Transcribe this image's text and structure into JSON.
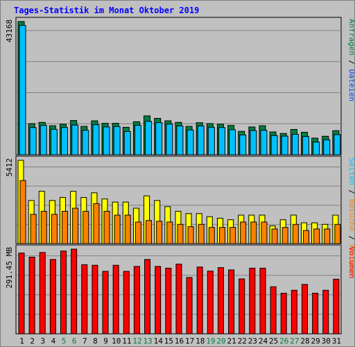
{
  "title": "Tages-Statistik im Monat Oktober 2019",
  "colors": {
    "background": "#c0c0c0",
    "panel": "#c0c0c0",
    "hits": "#008040",
    "files": "#00c0ff",
    "pages": "#00c0ff",
    "visits": "#ff8000",
    "sites": "#ffff00",
    "kbytes": "#ff0000"
  },
  "legend_right": {
    "top": [
      {
        "text": "Anfragen",
        "color": "#008040"
      },
      {
        "text": " / ",
        "color": "#000000"
      },
      {
        "text": "Dateien",
        "color": "#0040ff"
      }
    ],
    "middle": [
      {
        "text": "Seiten",
        "color": "#00c0ff"
      },
      {
        "text": " / ",
        "color": "#000000"
      },
      {
        "text": "Besuche",
        "color": "#ff8000"
      },
      {
        "text": " / ",
        "color": "#000000"
      },
      {
        "text": "Rechner",
        "color": "#ff8000"
      }
    ],
    "bottom": [
      {
        "text": "Volumen",
        "color": "#ff0000"
      }
    ]
  },
  "chart_data": [
    {
      "type": "bar",
      "panel": "requests-files",
      "ymax_label": "43168",
      "ylim": [
        0,
        43168
      ],
      "categories": [
        "1",
        "2",
        "3",
        "4",
        "5",
        "6",
        "7",
        "8",
        "9",
        "10",
        "11",
        "12",
        "13",
        "14",
        "15",
        "16",
        "17",
        "18",
        "19",
        "20",
        "21",
        "22",
        "23",
        "24",
        "25",
        "26",
        "27",
        "28",
        "29",
        "30",
        "31"
      ],
      "weekend_days": [
        "5",
        "6",
        "12",
        "13",
        "19",
        "20",
        "26",
        "27"
      ],
      "series": [
        {
          "name": "Anfragen",
          "color": "#008040",
          "values": [
            43168,
            10080,
            10500,
            9400,
            9900,
            11100,
            9200,
            11000,
            10200,
            10200,
            8900,
            10700,
            12600,
            11800,
            11000,
            10500,
            9200,
            10400,
            10100,
            9900,
            9500,
            7600,
            9000,
            9400,
            7400,
            6900,
            8200,
            7300,
            5400,
            6000,
            7800
          ]
        },
        {
          "name": "Dateien",
          "color": "#00c0ff",
          "values": [
            42600,
            9500,
            10200,
            8900,
            9500,
            10300,
            8600,
            10400,
            9700,
            9800,
            8200,
            10200,
            11500,
            11100,
            10600,
            10000,
            8700,
            10000,
            9600,
            9500,
            8800,
            7100,
            8500,
            8600,
            6900,
            6700,
            7300,
            6600,
            4800,
            5500,
            7200
          ]
        }
      ]
    },
    {
      "type": "bar",
      "panel": "pages-visits-sites",
      "ymax_label": "5412",
      "ylim": [
        0,
        5412
      ],
      "categories": [
        "1",
        "2",
        "3",
        "4",
        "5",
        "6",
        "7",
        "8",
        "9",
        "10",
        "11",
        "12",
        "13",
        "14",
        "15",
        "16",
        "17",
        "18",
        "19",
        "20",
        "21",
        "22",
        "23",
        "24",
        "25",
        "26",
        "27",
        "28",
        "29",
        "30",
        "31"
      ],
      "series": [
        {
          "name": "Seiten",
          "color": "#ffff00",
          "values": [
            5412,
            2800,
            3400,
            2800,
            3000,
            3400,
            3000,
            3300,
            2900,
            2700,
            2700,
            2300,
            3100,
            2800,
            2400,
            2100,
            1950,
            1950,
            1750,
            1650,
            1550,
            1850,
            1850,
            1850,
            1150,
            1550,
            1850,
            1350,
            1350,
            1250,
            1850
          ]
        },
        {
          "name": "Besuche",
          "color": "#ff8000",
          "values": [
            4100,
            1900,
            2100,
            1900,
            2100,
            2300,
            2100,
            2600,
            2100,
            1850,
            1850,
            1400,
            1500,
            1450,
            1400,
            1250,
            1100,
            1250,
            1050,
            1050,
            1050,
            1400,
            1400,
            1400,
            950,
            1050,
            1250,
            850,
            950,
            950,
            1250
          ]
        },
        {
          "name": "Rechner",
          "color": "#ff8000",
          "values": [
            4100,
            1900,
            2100,
            1900,
            2100,
            2300,
            2100,
            2600,
            2100,
            1850,
            1850,
            1400,
            1500,
            1450,
            1400,
            1250,
            1100,
            1250,
            1050,
            1050,
            1050,
            1400,
            1400,
            1400,
            950,
            1050,
            1250,
            850,
            950,
            950,
            1250
          ]
        }
      ]
    },
    {
      "type": "bar",
      "panel": "volume",
      "ymax_label": "291.45 MB",
      "unit": "MB",
      "ylim": [
        0,
        291.45
      ],
      "categories": [
        "1",
        "2",
        "3",
        "4",
        "5",
        "6",
        "7",
        "8",
        "9",
        "10",
        "11",
        "12",
        "13",
        "14",
        "15",
        "16",
        "17",
        "18",
        "19",
        "20",
        "21",
        "22",
        "23",
        "24",
        "25",
        "26",
        "27",
        "28",
        "29",
        "30",
        "31"
      ],
      "series": [
        {
          "name": "Volumen",
          "color": "#ff0000",
          "values": [
            278,
            264,
            280,
            256,
            285,
            291.45,
            238,
            236,
            215,
            236,
            215,
            232,
            256,
            232,
            226,
            240,
            194,
            230,
            216,
            228,
            220,
            189,
            226,
            226,
            162,
            140,
            150,
            170,
            140,
            150,
            188
          ]
        }
      ]
    }
  ]
}
